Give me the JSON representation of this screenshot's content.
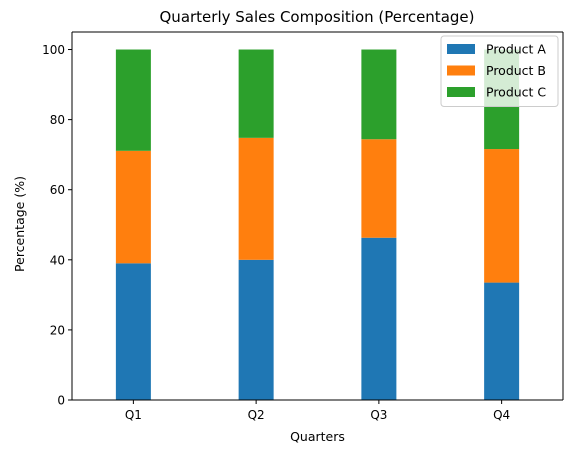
{
  "chart_data": {
    "type": "bar",
    "stacked": true,
    "title": "Quarterly Sales Composition (Percentage)",
    "xlabel": "Quarters",
    "ylabel": "Percentage (%)",
    "categories": [
      "Q1",
      "Q2",
      "Q3",
      "Q4"
    ],
    "ylim": [
      0,
      105
    ],
    "yticks": [
      0,
      20,
      40,
      60,
      80,
      100
    ],
    "grid": false,
    "legend_position": "top-right",
    "series": [
      {
        "name": "Product A",
        "color": "#1f77b4",
        "values": [
          39.0,
          40.0,
          46.3,
          33.5
        ]
      },
      {
        "name": "Product B",
        "color": "#ff7f0e",
        "values": [
          32.1,
          34.8,
          28.1,
          38.1
        ]
      },
      {
        "name": "Product C",
        "color": "#2ca02c",
        "values": [
          28.9,
          25.2,
          25.6,
          28.4
        ]
      }
    ]
  }
}
